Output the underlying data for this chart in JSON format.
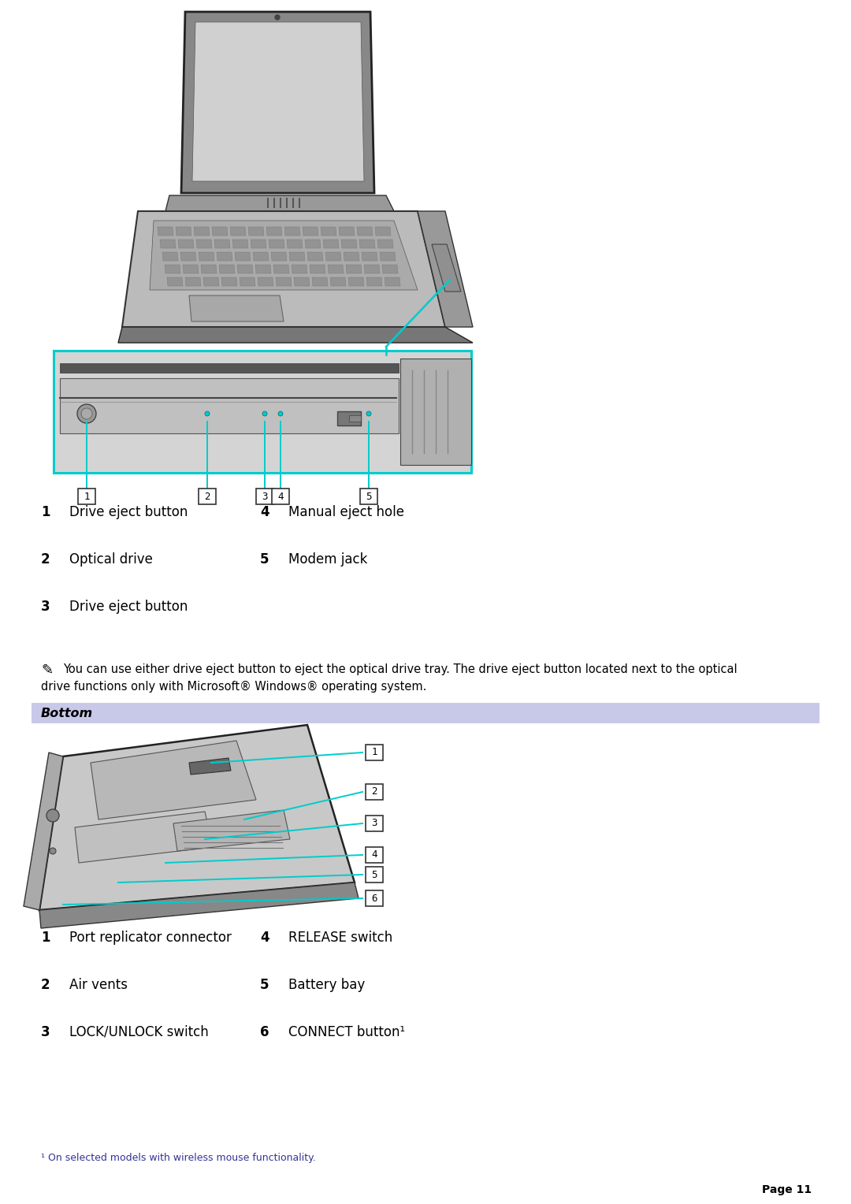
{
  "page_bg": "#ffffff",
  "page_number": "Page 11",
  "cyan_color": "#00cccc",
  "header_bg": "#c8c8e8",
  "note_text_line1": "You can use either drive eject button to eject the optical drive tray. The drive eject button located next to the optical",
  "note_text_line2": "drive functions only with Microsoft® Windows® operating system.",
  "items_top": [
    {
      "num": "1",
      "left": "Drive eject button",
      "num2": "4",
      "right": "Manual eject hole"
    },
    {
      "num": "2",
      "left": "Optical drive",
      "num2": "5",
      "right": "Modem jack"
    },
    {
      "num": "3",
      "left": "Drive eject button",
      "num2": null,
      "right": null
    }
  ],
  "items_bottom": [
    {
      "num": "1",
      "left": "Port replicator connector",
      "num2": "4",
      "right": "RELEASE switch"
    },
    {
      "num": "2",
      "left": "Air vents",
      "num2": "5",
      "right": "Battery bay"
    },
    {
      "num": "3",
      "left": "LOCK/UNLOCK switch",
      "num2": "6",
      "right": "CONNECT button¹"
    }
  ],
  "footnote": "¹ On selected models with wireless mouse functionality.",
  "bottom_section_title": "Bottom"
}
